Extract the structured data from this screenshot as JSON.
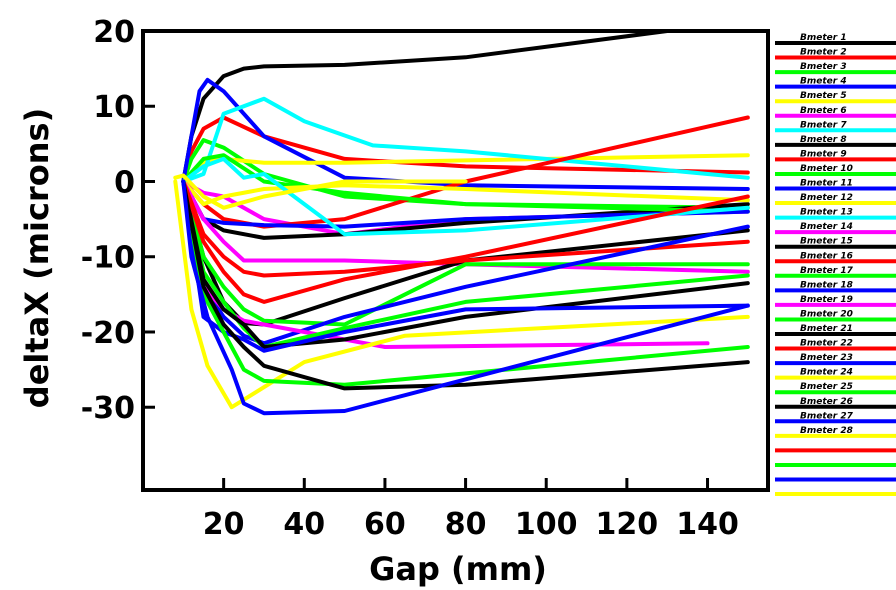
{
  "chart_data": {
    "type": "line",
    "title": "",
    "xlabel": "Gap (mm)",
    "ylabel": "deltaX (microns)",
    "xlim": [
      0,
      155
    ],
    "ylim": [
      -41,
      20
    ],
    "xticks": [
      20,
      40,
      60,
      80,
      100,
      120,
      140
    ],
    "yticks": [
      20,
      10,
      0,
      -10,
      -20,
      -30
    ],
    "grid": false,
    "legend": "right",
    "series": [
      {
        "name": "Bmeter 1",
        "color": "#000000",
        "x": [
          10,
          12,
          15,
          20,
          25,
          30,
          50,
          80,
          130
        ],
        "y": [
          0,
          6,
          11,
          14,
          15,
          15.3,
          15.5,
          16.5,
          20
        ]
      },
      {
        "name": "Bmeter 2",
        "color": "#ff0000",
        "x": [
          10,
          12,
          15,
          20,
          30,
          50,
          80,
          150
        ],
        "y": [
          0,
          4,
          7,
          8.5,
          6,
          3,
          2,
          1.2
        ]
      },
      {
        "name": "Bmeter 3",
        "color": "#00ff00",
        "x": [
          10,
          12,
          15,
          20,
          30,
          50,
          80,
          150
        ],
        "y": [
          0,
          3,
          5.5,
          4.5,
          1,
          -2,
          -3,
          -3.5
        ]
      },
      {
        "name": "Bmeter 4",
        "color": "#0000ff",
        "x": [
          10,
          12,
          14,
          16,
          20,
          30,
          50,
          80,
          150
        ],
        "y": [
          0,
          6,
          12,
          13.5,
          12,
          6,
          0.5,
          -0.5,
          -1
        ]
      },
      {
        "name": "Bmeter 5",
        "color": "#ffff00",
        "x": [
          10,
          15,
          20,
          30,
          50,
          80,
          150
        ],
        "y": [
          0,
          2.5,
          3,
          2.5,
          2.5,
          2.8,
          3.5
        ]
      },
      {
        "name": "Bmeter 6",
        "color": "#ff00ff",
        "x": [
          10,
          15,
          20,
          30,
          50,
          80,
          150
        ],
        "y": [
          0,
          -1.5,
          -2,
          -5,
          -7,
          -5,
          -4
        ]
      },
      {
        "name": "Bmeter 7",
        "color": "#00ffff",
        "x": [
          10,
          15,
          20,
          30,
          40,
          57,
          80,
          150
        ],
        "y": [
          0,
          1,
          9,
          11,
          8,
          4.8,
          4,
          0.5
        ]
      },
      {
        "name": "Bmeter 8",
        "color": "#000000",
        "x": [
          10,
          15,
          20,
          30,
          50,
          80,
          150
        ],
        "y": [
          0,
          -5,
          -6.5,
          -7.5,
          -7,
          -5.5,
          -3
        ]
      },
      {
        "name": "Bmeter 9",
        "color": "#ff0000",
        "x": [
          10,
          15,
          20,
          30,
          50,
          80,
          150
        ],
        "y": [
          0,
          -3,
          -5,
          -6,
          -5,
          0,
          8.5
        ]
      },
      {
        "name": "Bmeter 10",
        "color": "#00ff00",
        "x": [
          10,
          15,
          20,
          30,
          50,
          80,
          150
        ],
        "y": [
          0,
          3,
          3.5,
          0,
          -1.5,
          -3,
          -4
        ]
      },
      {
        "name": "Bmeter 11",
        "color": "#0000ff",
        "x": [
          10,
          15,
          20,
          30,
          50,
          80,
          150
        ],
        "y": [
          0,
          -5,
          -5.5,
          -5.8,
          -6,
          -5,
          -4
        ]
      },
      {
        "name": "Bmeter 12",
        "color": "#ffff00",
        "x": [
          10,
          15,
          20,
          30,
          50,
          80,
          150
        ],
        "y": [
          0,
          -3,
          -2,
          -1,
          -0.5,
          -1,
          -2.5
        ]
      },
      {
        "name": "Bmeter 13",
        "color": "#00ffff",
        "x": [
          10,
          15,
          20,
          25,
          30,
          40,
          50,
          80,
          150
        ],
        "y": [
          0,
          2,
          3,
          0.5,
          1,
          -3,
          -7,
          -6.5,
          -3.5
        ]
      },
      {
        "name": "Bmeter 14",
        "color": "#ff00ff",
        "x": [
          10,
          15,
          20,
          25,
          30,
          50,
          80,
          150
        ],
        "y": [
          0,
          -5,
          -8,
          -10.5,
          -10.5,
          -10.5,
          -11,
          -12
        ]
      },
      {
        "name": "Bmeter 15",
        "color": "#000000",
        "x": [
          10,
          15,
          20,
          25,
          30,
          50,
          80,
          150
        ],
        "y": [
          0,
          -10,
          -16,
          -18.8,
          -19,
          -15.5,
          -10.5,
          -6.5
        ]
      },
      {
        "name": "Bmeter 16",
        "color": "#ff0000",
        "x": [
          10,
          15,
          20,
          25,
          30,
          50,
          80,
          150
        ],
        "y": [
          0,
          -7,
          -10,
          -12,
          -12.5,
          -12,
          -10.5,
          -8
        ]
      },
      {
        "name": "Bmeter 17",
        "color": "#00ff00",
        "x": [
          10,
          15,
          20,
          25,
          30,
          50,
          80,
          150
        ],
        "y": [
          0,
          -10,
          -14,
          -17,
          -18.5,
          -19,
          -11,
          -11
        ]
      },
      {
        "name": "Bmeter 18",
        "color": "#0000ff",
        "x": [
          10,
          15,
          20,
          25,
          30,
          50,
          80,
          150
        ],
        "y": [
          0,
          -14,
          -18,
          -20.5,
          -21.5,
          -18,
          -14,
          -6
        ]
      },
      {
        "name": "Bmeter 19",
        "color": "#ff00ff",
        "x": [
          10,
          15,
          20,
          25,
          30,
          60,
          140
        ],
        "y": [
          0,
          -14,
          -17,
          -18.5,
          -19,
          -22,
          -21.5
        ]
      },
      {
        "name": "Bmeter 20",
        "color": "#00ff00",
        "x": [
          10,
          15,
          20,
          25,
          30,
          50,
          80,
          150
        ],
        "y": [
          0,
          -12,
          -16,
          -19.5,
          -22,
          -19.5,
          -16,
          -12.5
        ]
      },
      {
        "name": "Bmeter 21",
        "color": "#000000",
        "x": [
          10,
          15,
          20,
          25,
          30,
          50,
          80,
          150
        ],
        "y": [
          0,
          -13,
          -17,
          -19,
          -22,
          -21,
          -18,
          -13.5
        ]
      },
      {
        "name": "Bmeter 22",
        "color": "#ff0000",
        "x": [
          10,
          15,
          20,
          25,
          30,
          50,
          80,
          150
        ],
        "y": [
          0,
          -8,
          -12,
          -15,
          -16,
          -13,
          -10,
          -2
        ]
      },
      {
        "name": "Bmeter 23",
        "color": "#0000ff",
        "x": [
          10,
          15,
          20,
          25,
          30,
          50,
          80,
          150
        ],
        "y": [
          0,
          -18,
          -20,
          -21,
          -22.5,
          -20,
          -17,
          -16.5
        ]
      },
      {
        "name": "Bmeter 24",
        "color": "#ffff00",
        "x": [
          8,
          12,
          16,
          22,
          25,
          40,
          65,
          150
        ],
        "y": [
          0,
          -17,
          -24.5,
          -30,
          -29,
          -24,
          -20.5,
          -18
        ]
      },
      {
        "name": "Bmeter 25",
        "color": "#00ff00",
        "x": [
          10,
          15,
          20,
          25,
          30,
          50,
          80,
          150
        ],
        "y": [
          0,
          -15,
          -20,
          -25,
          -26.5,
          -27,
          -25.5,
          -22
        ]
      },
      {
        "name": "Bmeter 26",
        "color": "#000000",
        "x": [
          10,
          15,
          20,
          25,
          30,
          50,
          80,
          150
        ],
        "y": [
          0,
          -14,
          -19,
          -22,
          -24.5,
          -27.5,
          -27,
          -24
        ]
      },
      {
        "name": "Bmeter 27",
        "color": "#0000ff",
        "x": [
          10,
          12,
          16,
          22,
          25,
          30,
          50,
          150
        ],
        "y": [
          0,
          -10,
          -18,
          -25,
          -29.5,
          -30.8,
          -30.5,
          -16.5
        ]
      },
      {
        "name": "Bmeter 28",
        "color": "#ffff00",
        "x": [
          8,
          10,
          15,
          20,
          30,
          50,
          80
        ],
        "y": [
          0.5,
          0.8,
          -2,
          -3.5,
          -2,
          0,
          0
        ]
      }
    ],
    "legend_extra": [
      {
        "color": "#ff0000"
      },
      {
        "color": "#00ff00"
      },
      {
        "color": "#0000ff"
      },
      {
        "color": "#ffff00"
      }
    ]
  }
}
